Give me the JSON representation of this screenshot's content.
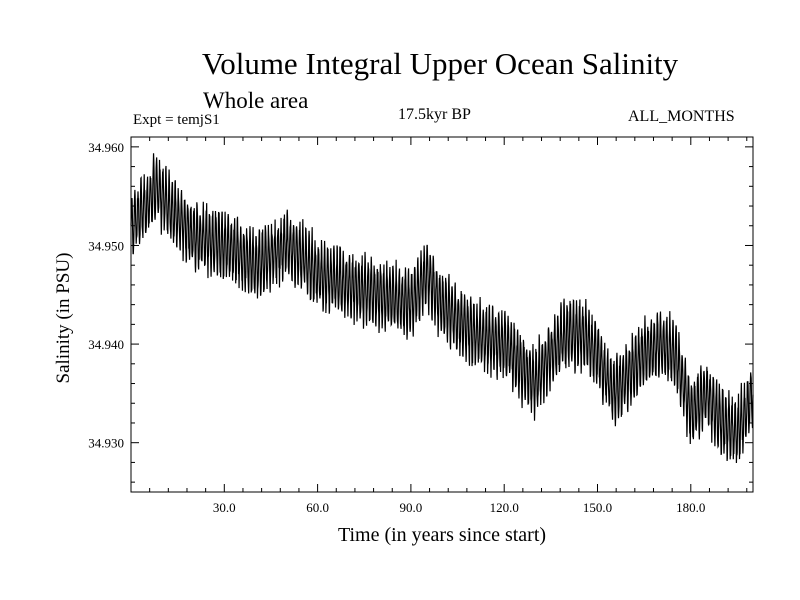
{
  "chart_data": {
    "type": "line",
    "title": "Volume Integral Upper Ocean Salinity",
    "subtitle": "Whole area",
    "annotations": {
      "experiment": "Expt = temjS1",
      "period": "17.5kyr BP",
      "months": "ALL_MONTHS"
    },
    "xlabel": "Time (in years since start)",
    "ylabel": "Salinity (in PSU)",
    "xlim": [
      0,
      200
    ],
    "ylim": [
      34.925,
      34.961
    ],
    "x_ticks": [
      30,
      60,
      90,
      120,
      150,
      180
    ],
    "x_tick_labels": [
      "30.0",
      "60.0",
      "90.0",
      "120.0",
      "150.0",
      "180.0"
    ],
    "y_ticks": [
      34.93,
      34.94,
      34.95,
      34.96
    ],
    "y_tick_labels": [
      "34.930",
      "34.940",
      "34.950",
      "34.960"
    ],
    "grid": false,
    "series": [
      {
        "name": "salinity",
        "description": "monthly values, approx. yearly mean trend with seasonal amplitude",
        "x": [
          0,
          5,
          8,
          12,
          20,
          30,
          40,
          50,
          55,
          60,
          70,
          80,
          90,
          95,
          100,
          110,
          120,
          125,
          130,
          135,
          140,
          145,
          150,
          155,
          160,
          165,
          170,
          175,
          180,
          185,
          190,
          195,
          200
        ],
        "values": [
          34.952,
          34.954,
          34.956,
          34.954,
          34.951,
          34.95,
          34.948,
          34.95,
          34.949,
          34.947,
          34.946,
          34.945,
          34.944,
          34.947,
          34.944,
          34.941,
          34.94,
          34.938,
          34.936,
          34.939,
          34.941,
          34.941,
          34.939,
          34.935,
          34.937,
          34.939,
          34.94,
          34.939,
          34.933,
          34.935,
          34.932,
          34.931,
          34.935
        ],
        "seasonal_amplitude": 0.003
      }
    ]
  }
}
